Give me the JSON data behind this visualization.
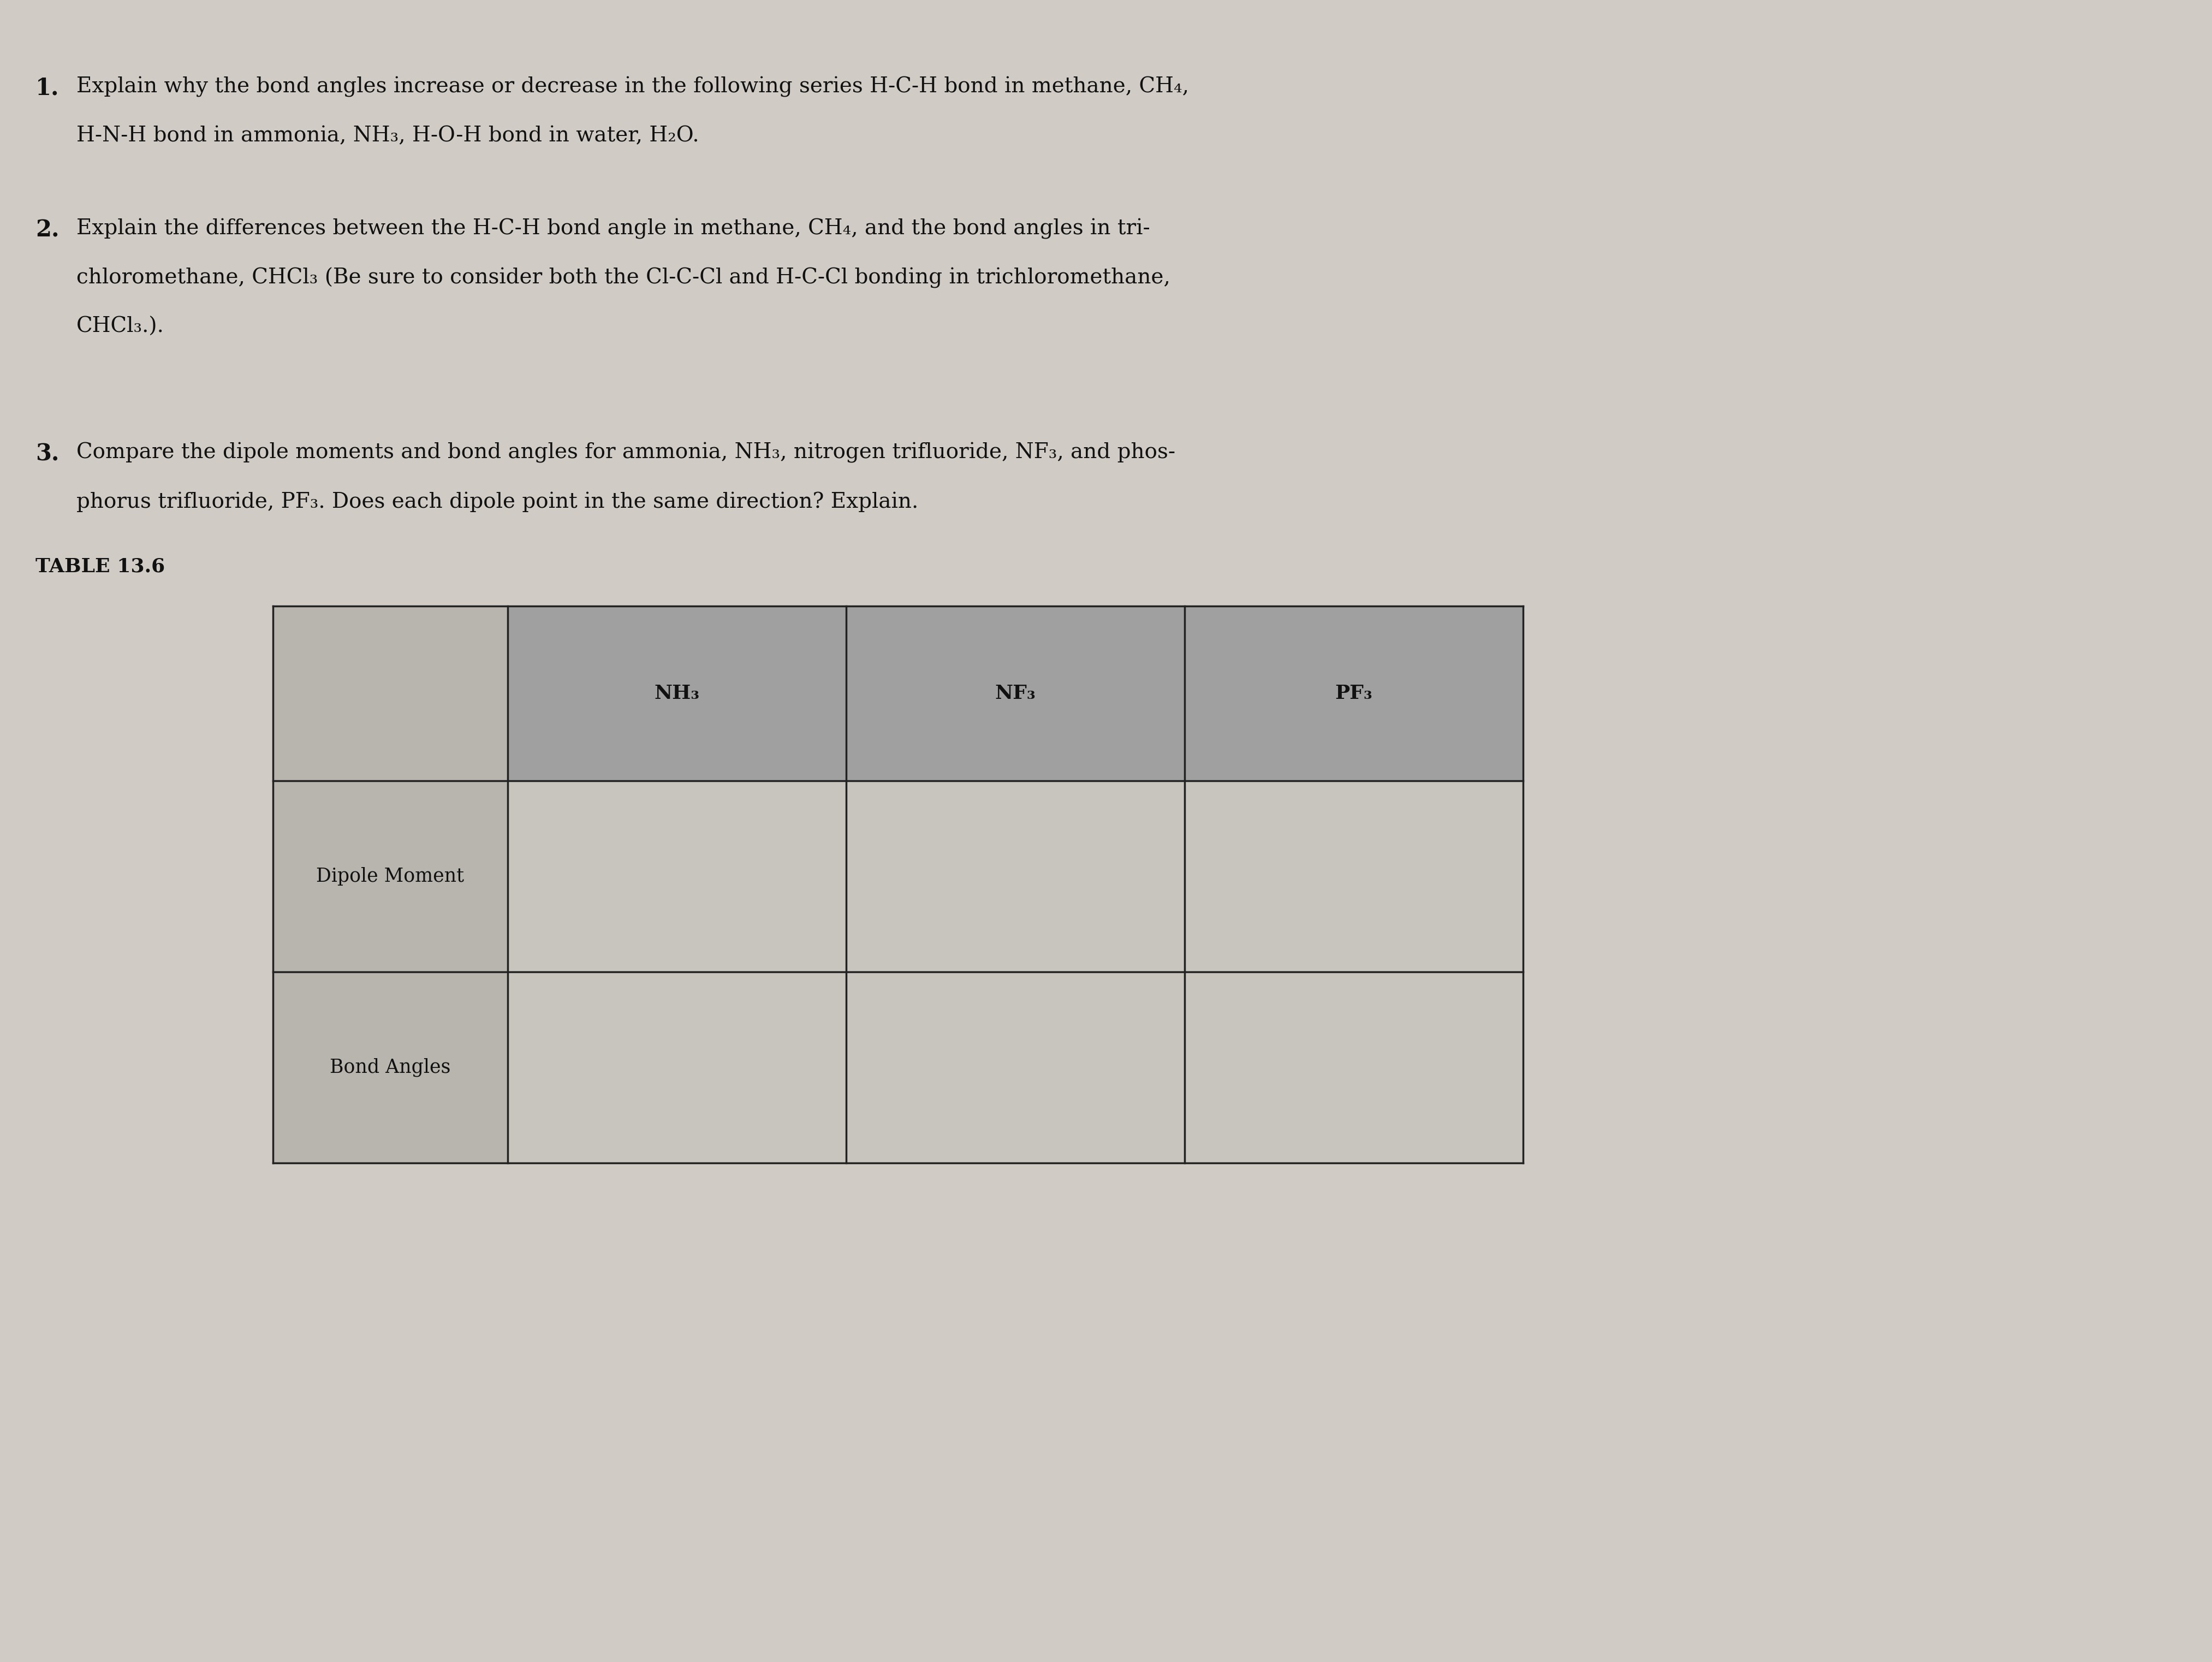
{
  "background_color": "#d0ccc5",
  "text_color": "#111111",
  "q1_number": "1.",
  "q1_line1": "Explain why the bond angles increase or decrease in the following series H-C-H bond in methane, CH₄,",
  "q1_line2": "H-N-H bond in ammonia, NH₃, H-O-H bond in water, H₂O.",
  "q2_number": "2.",
  "q2_line1": "Explain the differences between the H-C-H bond angle in methane, CH₄, and the bond angles in tri-",
  "q2_line2": "chloromethane, CHCl₃ (Be sure to consider both the Cl-C-Cl and H-C-Cl bonding in trichloromethane,",
  "q2_line3": "CHCl₃.).",
  "q3_number": "3.",
  "q3_line1": "Compare the dipole moments and bond angles for ammonia, NH₃, nitrogen trifluoride, NF₃, and phos-",
  "q3_line2": "phorus trifluoride, PF₃. Does each dipole point in the same direction? Explain.",
  "table_label": "TABLE 13.6",
  "col_headers": [
    "NH₃",
    "NF₃",
    "PF₃"
  ],
  "row_headers": [
    "Dipole Moment",
    "Bond Angles"
  ],
  "header_bg": "#a0a0a0",
  "cell_bg_light": "#d8d4ce",
  "line_color": "#222222",
  "font_size_text": 28,
  "font_size_bold": 30,
  "font_size_num": 30,
  "font_size_table_header": 26,
  "font_size_table_row": 25,
  "font_size_table_label": 26
}
